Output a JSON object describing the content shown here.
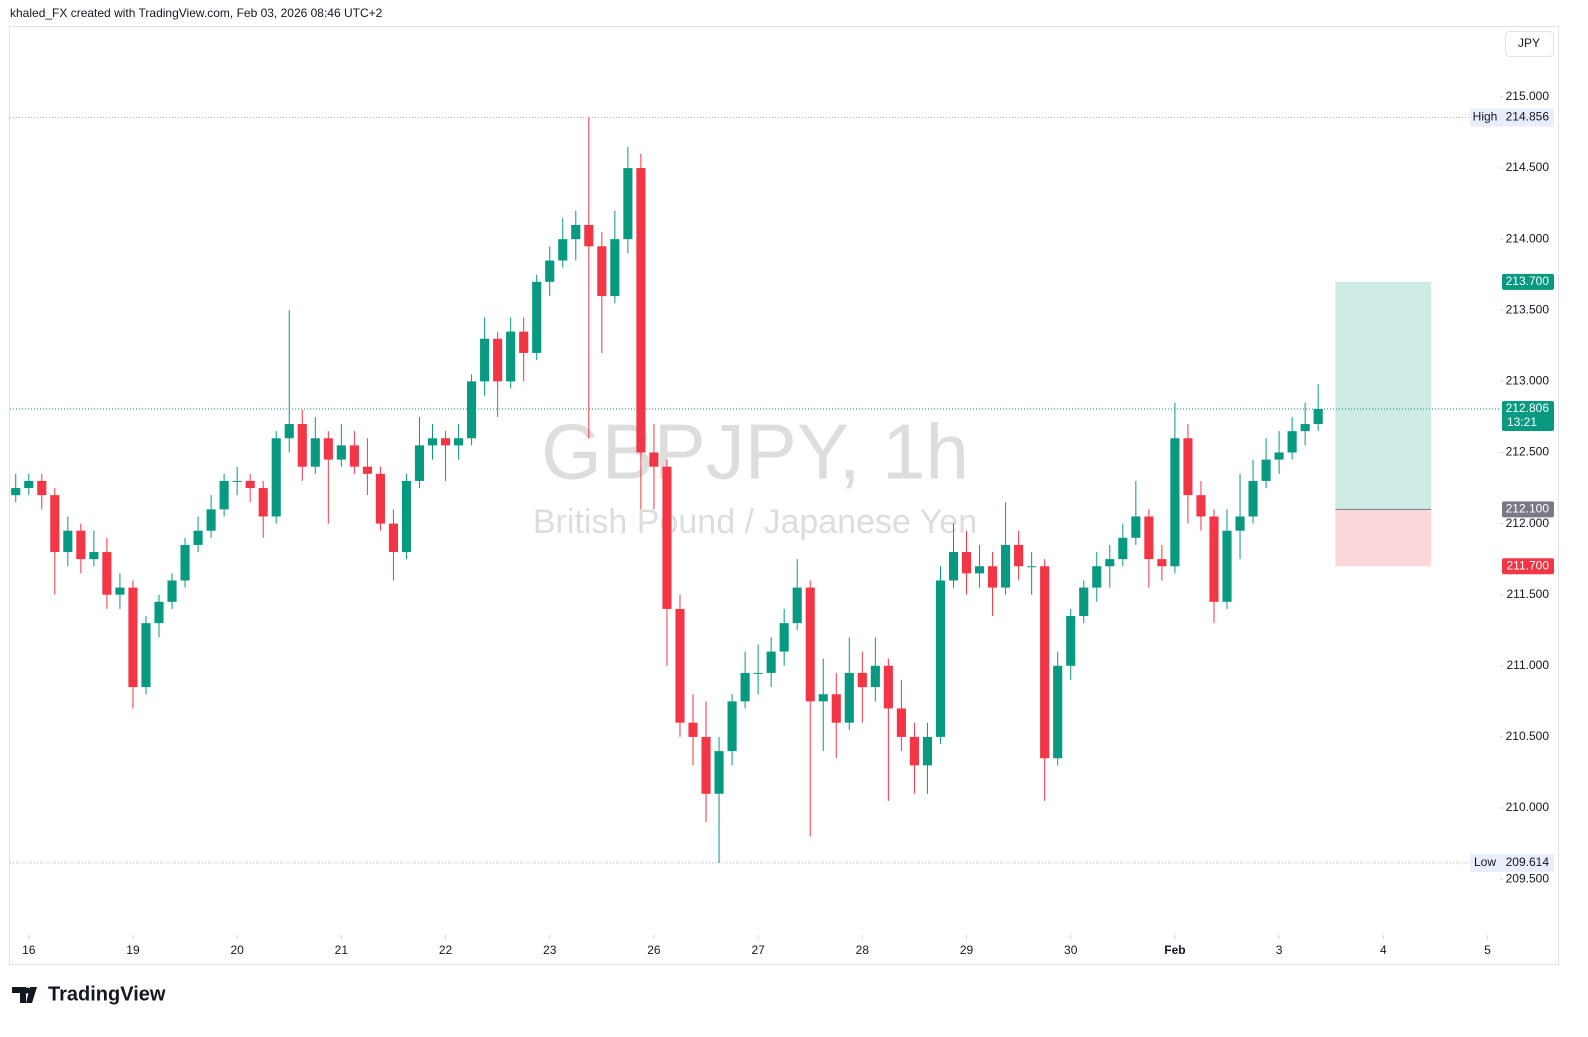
{
  "header": {
    "attribution": "khaled_FX created with TradingView.com, Feb 03, 2026 08:46 UTC+2",
    "currency": "JPY",
    "logo": "TradingView"
  },
  "chart_data": {
    "type": "candlestick",
    "title": "GBPJPY, 1h",
    "subtitle": "British Pound / Japanese Yen",
    "x": [
      -0.125,
      0,
      0.125,
      0.25,
      0.375,
      0.5,
      0.625,
      0.75,
      0.875,
      1,
      1.125,
      1.25,
      1.375,
      1.5,
      1.625,
      1.75,
      1.875,
      2,
      2.125,
      2.25,
      2.375,
      2.5,
      2.625,
      2.75,
      2.875,
      3,
      3.125,
      3.25,
      3.375,
      3.5,
      3.625,
      3.75,
      3.875,
      4,
      4.125,
      4.25,
      4.375,
      4.5,
      4.625,
      4.75,
      4.875,
      5,
      5.125,
      5.25,
      5.375,
      5.5,
      5.625,
      5.75,
      5.875,
      6,
      6.125,
      6.25,
      6.375,
      6.5,
      6.625,
      6.75,
      6.875,
      7,
      7.125,
      7.25,
      7.375,
      7.5,
      7.625,
      7.75,
      7.875,
      8,
      8.125,
      8.25,
      8.375,
      8.5,
      8.625,
      8.75,
      8.875,
      9,
      9.125,
      9.25,
      9.375,
      9.5,
      9.625,
      9.75,
      9.875,
      10,
      10.125,
      10.25,
      10.375,
      10.5,
      10.625,
      10.75,
      10.875,
      11,
      11.125,
      11.25,
      11.375,
      11.5,
      11.625,
      11.75,
      11.875,
      12,
      12.125,
      12.25,
      12.375
    ],
    "open": [
      212.2,
      212.25,
      212.3,
      212.2,
      211.8,
      211.95,
      211.75,
      211.8,
      211.5,
      211.55,
      210.85,
      211.3,
      211.45,
      211.6,
      211.85,
      211.95,
      212.1,
      212.3,
      212.3,
      212.25,
      212.05,
      212.6,
      212.7,
      212.4,
      212.6,
      212.45,
      212.55,
      212.4,
      212.35,
      212,
      211.8,
      212.3,
      212.55,
      212.6,
      212.55,
      212.6,
      213,
      213.3,
      213,
      213.35,
      213.2,
      213.7,
      213.85,
      214,
      214.1,
      213.95,
      213.6,
      214,
      214.5,
      212.5,
      212.4,
      211.4,
      210.6,
      210.5,
      210.1,
      210.4,
      210.75,
      210.95,
      210.95,
      211.1,
      211.3,
      211.55,
      210.75,
      210.8,
      210.6,
      210.95,
      210.85,
      211,
      210.7,
      210.5,
      210.3,
      210.5,
      211.6,
      211.8,
      211.65,
      211.7,
      211.55,
      211.85,
      211.7,
      211.7,
      210.35,
      211,
      211.35,
      211.55,
      211.7,
      211.75,
      211.9,
      212.05,
      211.75,
      211.7,
      212.6,
      212.2,
      212.05,
      211.45,
      211.95,
      212.05,
      212.3,
      212.45,
      212.5,
      212.65,
      212.7
    ],
    "high": [
      212.35,
      212.35,
      212.35,
      212.25,
      212.05,
      212,
      211.95,
      211.9,
      211.65,
      211.6,
      211.35,
      211.5,
      211.65,
      211.9,
      212.05,
      212.2,
      212.35,
      212.4,
      212.35,
      212.3,
      212.65,
      213.5,
      212.8,
      212.75,
      212.65,
      212.7,
      212.65,
      212.6,
      212.4,
      212.1,
      212.35,
      212.75,
      212.7,
      212.65,
      212.7,
      213.05,
      213.45,
      213.35,
      213.45,
      213.45,
      213.75,
      213.95,
      214.15,
      214.2,
      214.856,
      214.05,
      214.2,
      214.65,
      214.6,
      212.7,
      212.45,
      211.5,
      210.8,
      210.75,
      210.5,
      210.8,
      211.1,
      211.15,
      211.2,
      211.4,
      211.75,
      211.6,
      211.05,
      210.95,
      211.2,
      211.1,
      211.2,
      211.05,
      210.9,
      210.6,
      210.6,
      211.7,
      212,
      211.95,
      211.85,
      211.8,
      212.15,
      211.95,
      211.8,
      211.75,
      211.1,
      211.4,
      211.6,
      211.8,
      211.85,
      212,
      212.3,
      212.1,
      211.85,
      212.85,
      212.7,
      212.3,
      212.1,
      212.1,
      212.35,
      212.45,
      212.6,
      212.65,
      212.75,
      212.85,
      212.98
    ],
    "low": [
      212.15,
      212.2,
      212.1,
      211.5,
      211.7,
      211.65,
      211.7,
      211.4,
      211.4,
      210.7,
      210.8,
      211.2,
      211.4,
      211.55,
      211.8,
      211.9,
      212.05,
      212.2,
      212.15,
      211.9,
      212,
      212.5,
      212.3,
      212.35,
      212,
      212.4,
      212.35,
      212.2,
      211.95,
      211.6,
      211.75,
      212.25,
      212.45,
      212.3,
      212.45,
      212.55,
      212.9,
      212.75,
      212.95,
      213,
      213.15,
      213.6,
      213.8,
      213.85,
      212.6,
      213.2,
      213.55,
      213.9,
      212.1,
      212.1,
      211,
      210.5,
      210.3,
      209.9,
      209.614,
      210.3,
      210.7,
      210.8,
      210.85,
      211,
      211.25,
      209.8,
      210.4,
      210.35,
      210.55,
      210.6,
      210.75,
      210.05,
      210.4,
      210.1,
      210.1,
      210.45,
      211.55,
      211.5,
      211.55,
      211.35,
      211.5,
      211.6,
      211.5,
      210.05,
      210.3,
      210.9,
      211.3,
      211.45,
      211.55,
      211.7,
      211.85,
      211.55,
      211.6,
      211.65,
      212,
      211.95,
      211.3,
      211.4,
      211.75,
      212,
      212.25,
      212.35,
      212.45,
      212.55,
      212.65
    ],
    "close": [
      212.25,
      212.3,
      212.2,
      211.8,
      211.95,
      211.75,
      211.8,
      211.5,
      211.55,
      210.85,
      211.3,
      211.45,
      211.6,
      211.85,
      211.95,
      212.1,
      212.3,
      212.3,
      212.25,
      212.05,
      212.6,
      212.7,
      212.4,
      212.6,
      212.45,
      212.55,
      212.4,
      212.35,
      212,
      211.8,
      212.3,
      212.55,
      212.6,
      212.55,
      212.6,
      213,
      213.3,
      213,
      213.35,
      213.2,
      213.7,
      213.85,
      214,
      214.1,
      213.95,
      213.6,
      214,
      214.5,
      212.5,
      212.4,
      211.4,
      210.6,
      210.5,
      210.1,
      210.4,
      210.75,
      210.95,
      210.95,
      211.1,
      211.3,
      211.55,
      210.75,
      210.8,
      210.6,
      210.95,
      210.85,
      211,
      210.7,
      210.5,
      210.3,
      210.5,
      211.6,
      211.8,
      211.65,
      211.7,
      211.55,
      211.85,
      211.7,
      211.7,
      210.35,
      211,
      211.35,
      211.55,
      211.7,
      211.75,
      211.9,
      212.05,
      211.75,
      211.7,
      212.6,
      212.2,
      212.05,
      211.45,
      211.95,
      212.05,
      212.3,
      212.45,
      212.5,
      212.65,
      212.7,
      212.806
    ],
    "up_color": "#089981",
    "down_color": "#f23645",
    "xlim": [
      -0.18,
      14.12
    ],
    "ylim": [
      209.107,
      215.499
    ],
    "xticks": [
      {
        "value": 0,
        "label": "16"
      },
      {
        "value": 1,
        "label": "19"
      },
      {
        "value": 2,
        "label": "20"
      },
      {
        "value": 3,
        "label": "21"
      },
      {
        "value": 4,
        "label": "22"
      },
      {
        "value": 5,
        "label": "23"
      },
      {
        "value": 6,
        "label": "26"
      },
      {
        "value": 7,
        "label": "27"
      },
      {
        "value": 8,
        "label": "28"
      },
      {
        "value": 9,
        "label": "29"
      },
      {
        "value": 10,
        "label": "30"
      },
      {
        "value": 11,
        "label": "Feb"
      },
      {
        "value": 12,
        "label": "3"
      },
      {
        "value": 13,
        "label": "4"
      },
      {
        "value": 14,
        "label": "5"
      }
    ],
    "yticks": [
      {
        "value": 209.5,
        "label": "209.500"
      },
      {
        "value": 210,
        "label": "210.000"
      },
      {
        "value": 210.5,
        "label": "210.500"
      },
      {
        "value": 211,
        "label": "211.000"
      },
      {
        "value": 211.5,
        "label": "211.500"
      },
      {
        "value": 212,
        "label": "212.000"
      },
      {
        "value": 212.5,
        "label": "212.500"
      },
      {
        "value": 213,
        "label": "213.000"
      },
      {
        "value": 213.5,
        "label": "213.500"
      },
      {
        "value": 214,
        "label": "214.000"
      },
      {
        "value": 214.5,
        "label": "214.500"
      },
      {
        "value": 215,
        "label": "215.000"
      }
    ],
    "high_marker": {
      "label": "High",
      "value": 214.856
    },
    "low_marker": {
      "label": "Low",
      "value": 209.614
    },
    "last_price": {
      "value": 212.806,
      "countdown": "13:21",
      "color": "#089981"
    },
    "position": {
      "x": [
        12.54,
        13.46
      ],
      "target": {
        "value": 213.7,
        "label": "213.700"
      },
      "entry": {
        "value": 212.1,
        "label": "212.100"
      },
      "stop": {
        "value": 211.7,
        "label": "211.700"
      }
    }
  }
}
